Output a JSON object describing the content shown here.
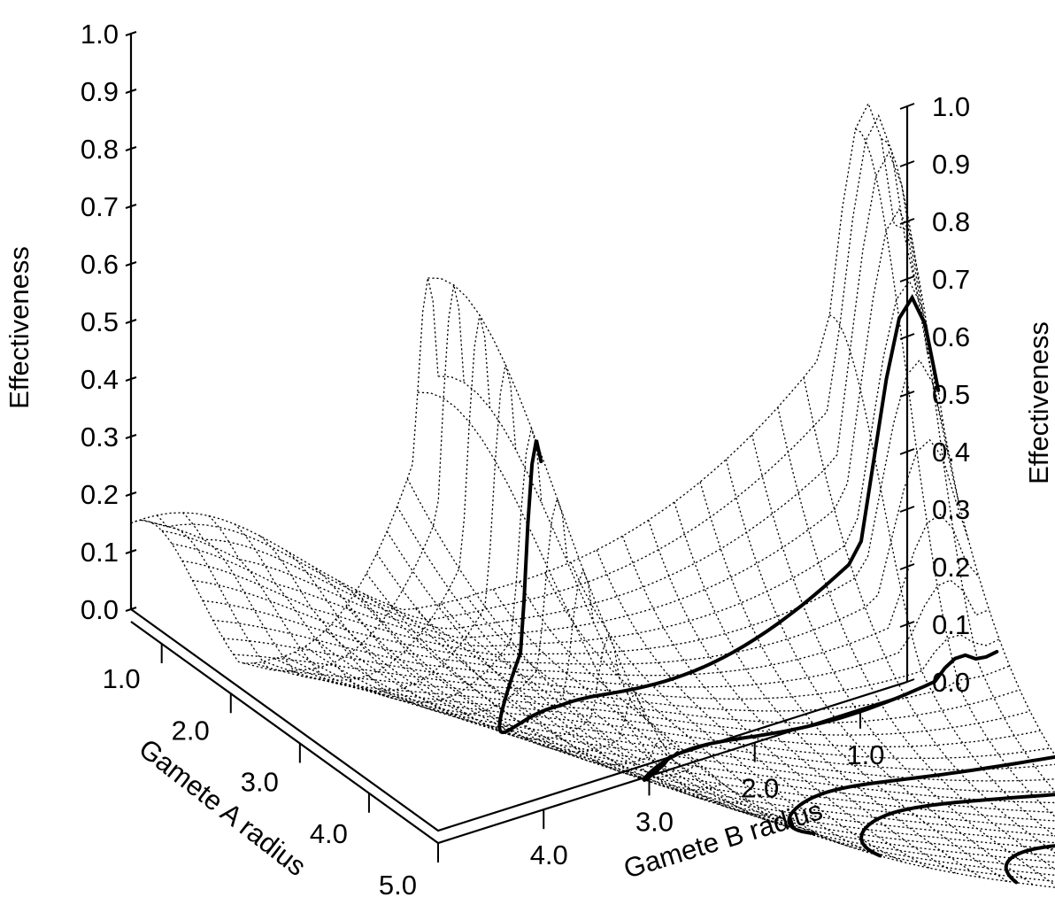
{
  "chart_data": {
    "type": "surface",
    "title": "",
    "x_axis": {
      "label": "Gamete A radius",
      "ticks": [
        "1.0",
        "2.0",
        "3.0",
        "4.0",
        "5.0"
      ],
      "range": [
        0.5,
        5.0
      ]
    },
    "y_axis": {
      "label": "Gamete B radius",
      "ticks": [
        "1.0",
        "2.0",
        "3.0",
        "4.0"
      ],
      "range": [
        0.5,
        5.0
      ]
    },
    "z_axis_left": {
      "label": "Effectiveness",
      "ticks": [
        "0.0",
        "0.1",
        "0.2",
        "0.3",
        "0.4",
        "0.5",
        "0.6",
        "0.7",
        "0.8",
        "0.9",
        "1.0"
      ],
      "range": [
        0,
        1
      ]
    },
    "z_axis_right": {
      "label": "Effectiveness",
      "ticks": [
        "0.0",
        "0.1",
        "0.2",
        "0.3",
        "0.4",
        "0.5",
        "0.6",
        "0.7",
        "0.8",
        "0.9",
        "1.0"
      ],
      "range": [
        0,
        1
      ]
    },
    "surface": {
      "description_peaks": [
        {
          "a_radius": 0.5,
          "b_radius": 5.0,
          "effectiveness": 1.0
        },
        {
          "a_radius": 5.0,
          "b_radius": 0.5,
          "effectiveness": 0.95
        },
        {
          "a_radius": 0.5,
          "b_radius": 0.5,
          "effectiveness": 0.5
        }
      ]
    },
    "contour_levels": [
      0.1,
      0.3,
      0.5,
      0.6,
      0.8
    ],
    "grid": false,
    "legend": "none"
  }
}
